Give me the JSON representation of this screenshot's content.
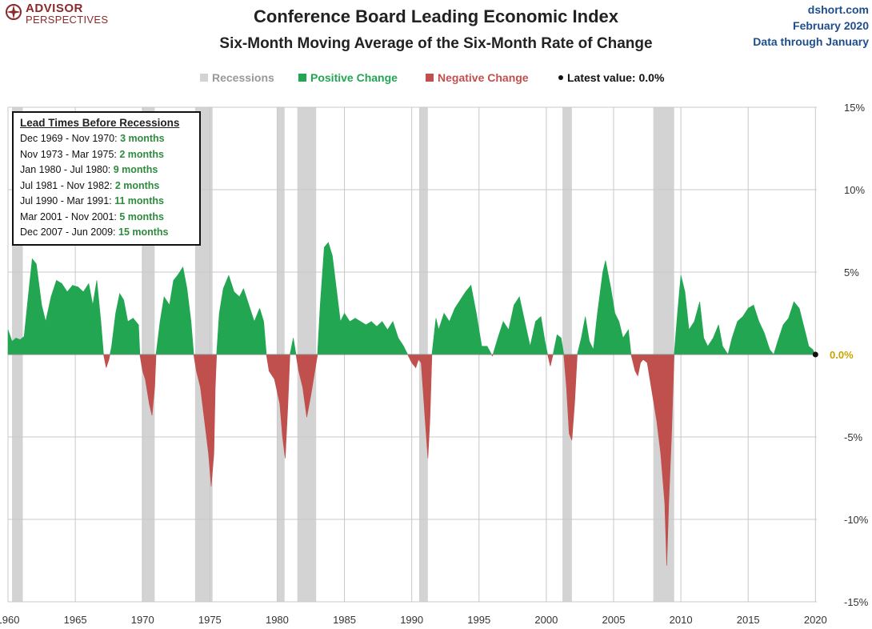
{
  "brand": {
    "line1": "ADVISOR",
    "line2": "PERSPECTIVES",
    "color": "#8a2a2a"
  },
  "header": {
    "title": "Conference Board Leading Economic Index",
    "subtitle": "Six-Month  Moving Average of the Six-Month  Rate of Change",
    "source_lines": [
      "dshort.com",
      "February 2020",
      "Data through January"
    ]
  },
  "legend": {
    "recessions": "Recessions",
    "positive": "Positive Change",
    "negative": "Negative Change",
    "latest": "Latest value: 0.0%"
  },
  "lead_times": {
    "title": "Lead Times Before Recessions",
    "rows": [
      {
        "period": "Dec 1969 - Nov 1970: ",
        "lead": "3 months"
      },
      {
        "period": "Nov 1973 - Mar 1975: ",
        "lead": "2 months"
      },
      {
        "period": "Jan 1980 - Jul 1980: ",
        "lead": "9 months"
      },
      {
        "period": "Jul 1981 - Nov 1982: ",
        "lead": "2 months"
      },
      {
        "period": "Jul 1990 - Mar 1991: ",
        "lead": "11 months"
      },
      {
        "period": "Mar 2001 - Nov 2001: ",
        "lead": "5 months"
      },
      {
        "period": "Dec 2007 - Jun 2009: ",
        "lead": "15 months"
      }
    ]
  },
  "colors": {
    "positive": "#22a652",
    "negative": "#c0504d",
    "recession": "#d3d3d3",
    "grid": "#c8c8c8",
    "source": "#1f4e8c",
    "latest_label": "#c9a400"
  },
  "chart_data": {
    "type": "area",
    "xlabel": "",
    "ylabel": "",
    "xlim": [
      1960,
      2020.1
    ],
    "ylim": [
      -15,
      15
    ],
    "x_ticks": [
      1960,
      1965,
      1970,
      1975,
      1980,
      1985,
      1990,
      1995,
      2000,
      2005,
      2010,
      2015,
      2020
    ],
    "y_ticks": [
      15,
      10,
      5,
      0,
      -5,
      -10,
      -15
    ],
    "y_tick_labels": [
      "15%",
      "10%",
      "5%",
      "0.0%",
      "-5%",
      "-10%",
      "-15%"
    ],
    "grid": true,
    "legend_position": "top",
    "recessions": [
      [
        1960.3,
        1961.1
      ],
      [
        1969.95,
        1970.9
      ],
      [
        1973.9,
        1975.2
      ],
      [
        1980.0,
        1980.55
      ],
      [
        1981.5,
        1982.9
      ],
      [
        1990.55,
        1991.2
      ],
      [
        2001.2,
        2001.9
      ],
      [
        2007.95,
        2009.5
      ]
    ],
    "series": [
      {
        "points": [
          [
            1960.0,
            1.5
          ],
          [
            1960.3,
            0.8
          ],
          [
            1960.6,
            1.0
          ],
          [
            1960.9,
            0.9
          ],
          [
            1961.2,
            1.1
          ],
          [
            1961.5,
            3.5
          ],
          [
            1961.8,
            5.8
          ],
          [
            1962.1,
            5.5
          ],
          [
            1962.5,
            3.0
          ],
          [
            1962.8,
            2.0
          ],
          [
            1963.2,
            3.5
          ],
          [
            1963.6,
            4.5
          ],
          [
            1964.0,
            4.3
          ],
          [
            1964.4,
            3.8
          ],
          [
            1964.8,
            4.2
          ],
          [
            1965.2,
            4.1
          ],
          [
            1965.6,
            3.8
          ],
          [
            1966.0,
            4.3
          ],
          [
            1966.3,
            3.0
          ],
          [
            1966.6,
            4.5
          ],
          [
            1966.9,
            2.0
          ],
          [
            1967.1,
            0.0
          ],
          [
            1967.3,
            -0.8
          ],
          [
            1967.5,
            -0.3
          ],
          [
            1967.7,
            0.5
          ],
          [
            1968.0,
            2.5
          ],
          [
            1968.3,
            3.7
          ],
          [
            1968.6,
            3.3
          ],
          [
            1968.9,
            2.0
          ],
          [
            1969.3,
            2.2
          ],
          [
            1969.7,
            1.8
          ],
          [
            1969.8,
            0.0
          ],
          [
            1970.0,
            -1.0
          ],
          [
            1970.2,
            -1.5
          ],
          [
            1970.5,
            -3.0
          ],
          [
            1970.7,
            -3.7
          ],
          [
            1970.9,
            -2.0
          ],
          [
            1971.0,
            0.0
          ],
          [
            1971.3,
            2.0
          ],
          [
            1971.6,
            3.5
          ],
          [
            1972.0,
            3.0
          ],
          [
            1972.3,
            4.5
          ],
          [
            1972.6,
            4.8
          ],
          [
            1973.0,
            5.3
          ],
          [
            1973.3,
            4.0
          ],
          [
            1973.6,
            2.0
          ],
          [
            1973.8,
            0.0
          ],
          [
            1974.0,
            -1.0
          ],
          [
            1974.3,
            -2.0
          ],
          [
            1974.6,
            -4.0
          ],
          [
            1974.9,
            -6.0
          ],
          [
            1975.1,
            -8.0
          ],
          [
            1975.3,
            -6.0
          ],
          [
            1975.4,
            -2.0
          ],
          [
            1975.5,
            0.0
          ],
          [
            1975.7,
            2.5
          ],
          [
            1976.0,
            4.0
          ],
          [
            1976.4,
            4.8
          ],
          [
            1976.8,
            3.8
          ],
          [
            1977.2,
            3.5
          ],
          [
            1977.5,
            4.0
          ],
          [
            1977.9,
            3.0
          ],
          [
            1978.3,
            2.0
          ],
          [
            1978.7,
            2.8
          ],
          [
            1979.0,
            2.0
          ],
          [
            1979.2,
            0.0
          ],
          [
            1979.4,
            -1.0
          ],
          [
            1979.8,
            -1.5
          ],
          [
            1980.2,
            -3.0
          ],
          [
            1980.4,
            -5.0
          ],
          [
            1980.6,
            -6.3
          ],
          [
            1980.8,
            -3.0
          ],
          [
            1980.95,
            0.0
          ],
          [
            1981.2,
            1.0
          ],
          [
            1981.4,
            0.0
          ],
          [
            1981.6,
            -1.0
          ],
          [
            1981.9,
            -2.0
          ],
          [
            1982.2,
            -3.8
          ],
          [
            1982.5,
            -2.5
          ],
          [
            1982.8,
            -1.0
          ],
          [
            1983.0,
            0.0
          ],
          [
            1983.2,
            3.0
          ],
          [
            1983.5,
            6.5
          ],
          [
            1983.8,
            6.8
          ],
          [
            1984.1,
            6.0
          ],
          [
            1984.4,
            4.0
          ],
          [
            1984.7,
            2.0
          ],
          [
            1985.0,
            2.5
          ],
          [
            1985.4,
            2.0
          ],
          [
            1985.8,
            2.2
          ],
          [
            1986.2,
            2.0
          ],
          [
            1986.6,
            1.8
          ],
          [
            1987.0,
            2.0
          ],
          [
            1987.4,
            1.7
          ],
          [
            1987.8,
            2.0
          ],
          [
            1988.2,
            1.5
          ],
          [
            1988.6,
            2.0
          ],
          [
            1989.0,
            1.0
          ],
          [
            1989.4,
            0.5
          ],
          [
            1989.7,
            0.0
          ],
          [
            1990.0,
            -0.5
          ],
          [
            1990.3,
            -0.8
          ],
          [
            1990.5,
            -0.3
          ],
          [
            1990.7,
            -0.5
          ],
          [
            1991.0,
            -4.0
          ],
          [
            1991.2,
            -6.3
          ],
          [
            1991.35,
            -4.0
          ],
          [
            1991.5,
            0.0
          ],
          [
            1991.8,
            2.2
          ],
          [
            1992.0,
            1.5
          ],
          [
            1992.4,
            2.5
          ],
          [
            1992.8,
            2.0
          ],
          [
            1993.2,
            2.8
          ],
          [
            1993.6,
            3.3
          ],
          [
            1994.0,
            3.8
          ],
          [
            1994.4,
            4.2
          ],
          [
            1994.8,
            2.5
          ],
          [
            1995.2,
            0.5
          ],
          [
            1995.6,
            0.5
          ],
          [
            1996.0,
            -0.1
          ],
          [
            1996.4,
            1.0
          ],
          [
            1996.8,
            2.0
          ],
          [
            1997.2,
            1.5
          ],
          [
            1997.6,
            3.0
          ],
          [
            1998.0,
            3.5
          ],
          [
            1998.4,
            2.0
          ],
          [
            1998.8,
            0.5
          ],
          [
            1999.2,
            2.0
          ],
          [
            1999.6,
            2.3
          ],
          [
            1999.9,
            0.8
          ],
          [
            2000.1,
            0.0
          ],
          [
            2000.3,
            -0.7
          ],
          [
            2000.5,
            0.0
          ],
          [
            2000.8,
            1.2
          ],
          [
            2001.1,
            1.0
          ],
          [
            2001.3,
            0.0
          ],
          [
            2001.5,
            -2.0
          ],
          [
            2001.7,
            -4.8
          ],
          [
            2001.9,
            -5.2
          ],
          [
            2002.1,
            -3.0
          ],
          [
            2002.3,
            0.0
          ],
          [
            2002.6,
            1.0
          ],
          [
            2002.9,
            2.3
          ],
          [
            2003.2,
            0.8
          ],
          [
            2003.5,
            0.3
          ],
          [
            2003.8,
            2.5
          ],
          [
            2004.2,
            5.0
          ],
          [
            2004.4,
            5.7
          ],
          [
            2004.8,
            4.0
          ],
          [
            2005.1,
            2.5
          ],
          [
            2005.4,
            2.0
          ],
          [
            2005.7,
            1.0
          ],
          [
            2006.1,
            1.5
          ],
          [
            2006.3,
            0.0
          ],
          [
            2006.6,
            -1.0
          ],
          [
            2006.8,
            -1.3
          ],
          [
            2007.0,
            -0.5
          ],
          [
            2007.2,
            -0.3
          ],
          [
            2007.5,
            -0.5
          ],
          [
            2007.8,
            -2.0
          ],
          [
            2008.2,
            -4.0
          ],
          [
            2008.5,
            -6.0
          ],
          [
            2008.8,
            -9.0
          ],
          [
            2008.95,
            -12.8
          ],
          [
            2009.1,
            -9.0
          ],
          [
            2009.3,
            -5.0
          ],
          [
            2009.5,
            0.0
          ],
          [
            2009.75,
            2.5
          ],
          [
            2010.0,
            4.8
          ],
          [
            2010.3,
            3.8
          ],
          [
            2010.6,
            1.5
          ],
          [
            2011.0,
            2.0
          ],
          [
            2011.4,
            3.2
          ],
          [
            2011.7,
            1.0
          ],
          [
            2012.0,
            0.5
          ],
          [
            2012.4,
            1.0
          ],
          [
            2012.8,
            1.8
          ],
          [
            2013.1,
            0.5
          ],
          [
            2013.5,
            0.0
          ],
          [
            2013.8,
            1.0
          ],
          [
            2014.2,
            2.0
          ],
          [
            2014.6,
            2.3
          ],
          [
            2015.0,
            2.8
          ],
          [
            2015.4,
            3.0
          ],
          [
            2015.8,
            2.0
          ],
          [
            2016.2,
            1.3
          ],
          [
            2016.6,
            0.3
          ],
          [
            2016.9,
            0.0
          ],
          [
            2017.2,
            0.8
          ],
          [
            2017.6,
            1.8
          ],
          [
            2018.0,
            2.2
          ],
          [
            2018.4,
            3.2
          ],
          [
            2018.8,
            2.8
          ],
          [
            2019.2,
            1.5
          ],
          [
            2019.5,
            0.5
          ],
          [
            2019.8,
            0.3
          ],
          [
            2020.0,
            0.0
          ]
        ]
      }
    ],
    "latest_value_label": "0.0%"
  }
}
